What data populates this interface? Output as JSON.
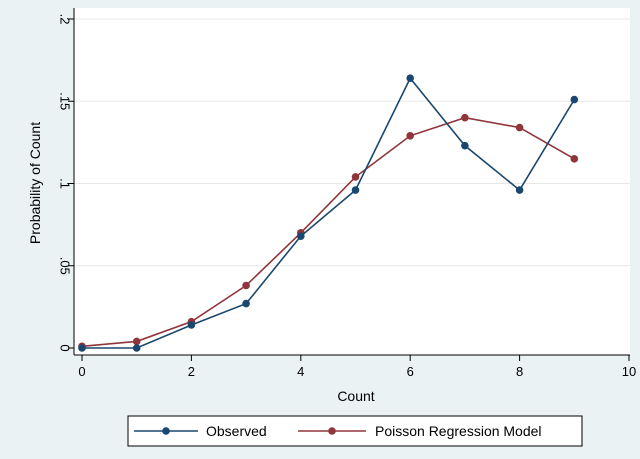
{
  "chart_data": {
    "type": "line",
    "xlabel": "Count",
    "ylabel": "Probability of Count",
    "xlim": [
      0,
      10
    ],
    "ylim": [
      0,
      0.2
    ],
    "x_ticks": [
      {
        "value": 0,
        "label": "0"
      },
      {
        "value": 2,
        "label": "2"
      },
      {
        "value": 4,
        "label": "4"
      },
      {
        "value": 6,
        "label": "6"
      },
      {
        "value": 8,
        "label": "8"
      },
      {
        "value": 10,
        "label": "10"
      }
    ],
    "y_ticks": [
      {
        "value": 0,
        "label": "0"
      },
      {
        "value": 0.05,
        "label": ".05"
      },
      {
        "value": 0.1,
        "label": ".1"
      },
      {
        "value": 0.15,
        "label": ".15"
      },
      {
        "value": 0.2,
        "label": ".2"
      }
    ],
    "grid": "horizontal",
    "legend_position": "bottom",
    "series": [
      {
        "name": "Observed",
        "color": "#1a476f",
        "x": [
          0,
          1,
          2,
          3,
          4,
          5,
          6,
          7,
          8,
          9
        ],
        "values": [
          0,
          0,
          0.014,
          0.027,
          0.068,
          0.096,
          0.164,
          0.123,
          0.096,
          0.151
        ]
      },
      {
        "name": "Poisson Regression Model",
        "color": "#90353b",
        "x": [
          0,
          1,
          2,
          3,
          4,
          5,
          6,
          7,
          8,
          9
        ],
        "values": [
          0.001,
          0.004,
          0.016,
          0.038,
          0.07,
          0.104,
          0.129,
          0.14,
          0.134,
          0.115
        ]
      }
    ]
  }
}
